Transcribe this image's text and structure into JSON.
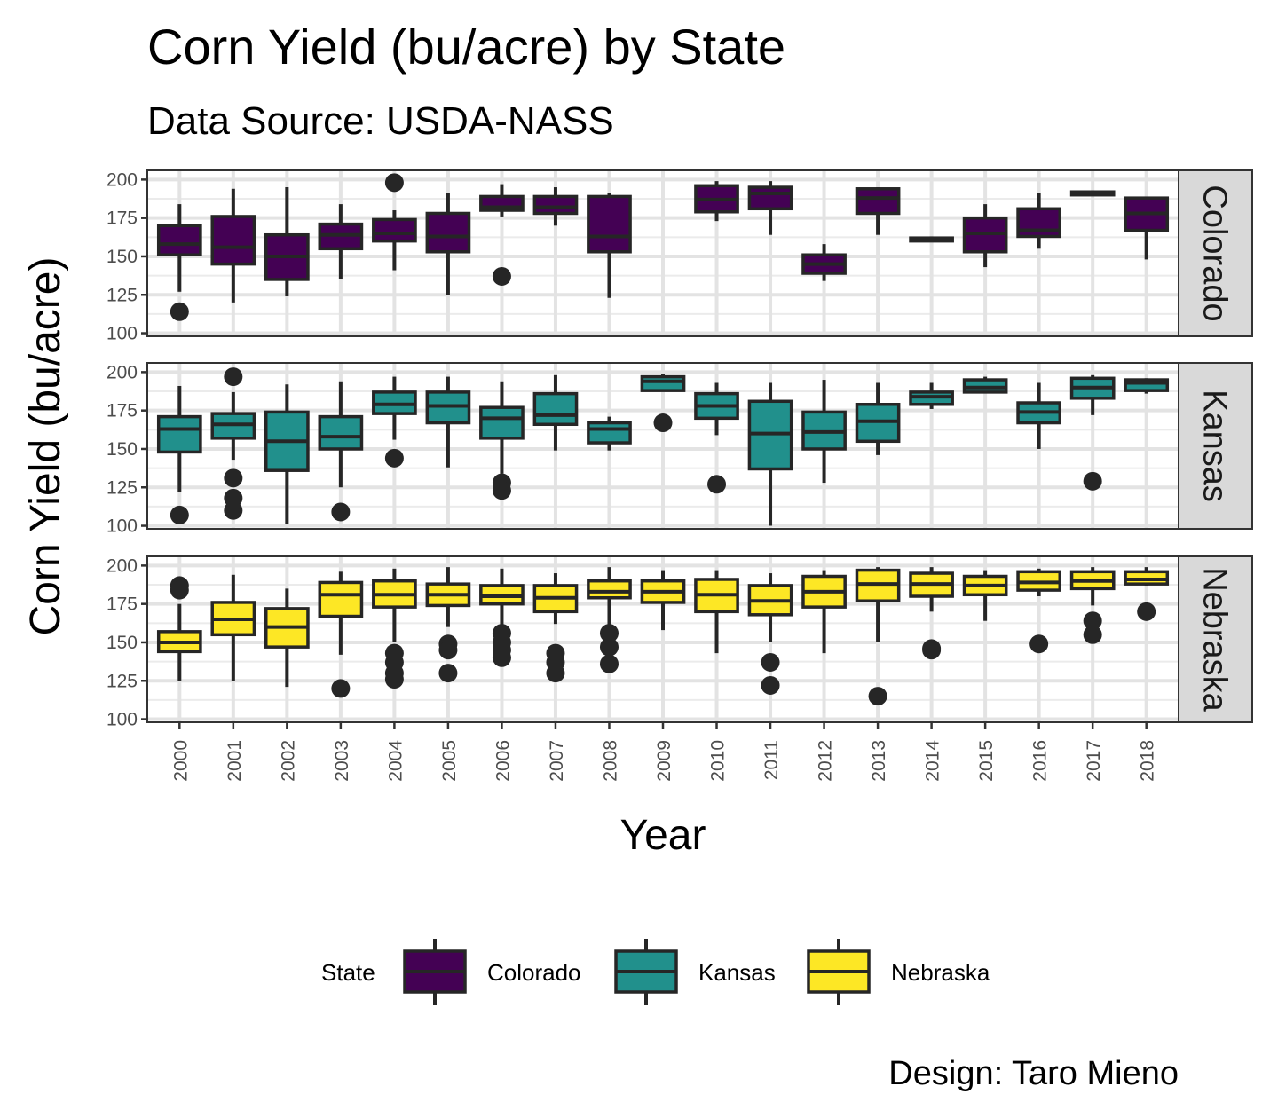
{
  "chart_data": {
    "type": "boxplot",
    "title": "Corn Yield (bu/acre) by State",
    "subtitle": "Data Source: USDA-NASS",
    "xlabel": "Year",
    "ylabel": "Corn Yield (bu/acre)",
    "caption": "Design: Taro Mieno",
    "ylim": [
      98,
      206
    ],
    "yticks": [
      100,
      125,
      150,
      175,
      200
    ],
    "categories": [
      "2000",
      "2001",
      "2002",
      "2003",
      "2004",
      "2005",
      "2006",
      "2007",
      "2008",
      "2009",
      "2010",
      "2011",
      "2012",
      "2013",
      "2014",
      "2015",
      "2016",
      "2017",
      "2018"
    ],
    "grid": true,
    "legend": {
      "title": "State",
      "position": "bottom"
    },
    "series": [
      {
        "name": "Colorado",
        "color": "#440154",
        "boxes": [
          {
            "x": "2000",
            "whislo": 127,
            "q1": 151,
            "med": 158,
            "q3": 170,
            "whishi": 184,
            "outliers": [
              114
            ]
          },
          {
            "x": "2001",
            "whislo": 120,
            "q1": 145,
            "med": 156,
            "q3": 176,
            "whishi": 194,
            "outliers": []
          },
          {
            "x": "2002",
            "whislo": 124,
            "q1": 135,
            "med": 150,
            "q3": 164,
            "whishi": 195,
            "outliers": []
          },
          {
            "x": "2003",
            "whislo": 135,
            "q1": 155,
            "med": 164,
            "q3": 171,
            "whishi": 184,
            "outliers": []
          },
          {
            "x": "2004",
            "whislo": 141,
            "q1": 160,
            "med": 165,
            "q3": 174,
            "whishi": 180,
            "outliers": [
              198
            ]
          },
          {
            "x": "2005",
            "whislo": 125,
            "q1": 153,
            "med": 163,
            "q3": 178,
            "whishi": 191,
            "outliers": []
          },
          {
            "x": "2006",
            "whislo": 176,
            "q1": 180,
            "med": 182,
            "q3": 189,
            "whishi": 197,
            "outliers": [
              137
            ]
          },
          {
            "x": "2007",
            "whislo": 170,
            "q1": 178,
            "med": 182,
            "q3": 189,
            "whishi": 195,
            "outliers": []
          },
          {
            "x": "2008",
            "whislo": 123,
            "q1": 153,
            "med": 163,
            "q3": 189,
            "whishi": 191,
            "outliers": []
          },
          {
            "x": "2009",
            "whislo": null,
            "q1": null,
            "med": null,
            "q3": null,
            "whishi": null,
            "outliers": []
          },
          {
            "x": "2010",
            "whislo": 173,
            "q1": 179,
            "med": 187,
            "q3": 196,
            "whishi": 199,
            "outliers": []
          },
          {
            "x": "2011",
            "whislo": 164,
            "q1": 181,
            "med": 191,
            "q3": 195,
            "whishi": 199,
            "outliers": []
          },
          {
            "x": "2012",
            "whislo": 134,
            "q1": 139,
            "med": 145,
            "q3": 151,
            "whishi": 158,
            "outliers": []
          },
          {
            "x": "2013",
            "whislo": 164,
            "q1": 178,
            "med": 188,
            "q3": 194,
            "whishi": 195,
            "outliers": []
          },
          {
            "x": "2014",
            "whislo": 160,
            "q1": 160,
            "med": 161,
            "q3": 162,
            "whishi": 163,
            "outliers": []
          },
          {
            "x": "2015",
            "whislo": 143,
            "q1": 153,
            "med": 165,
            "q3": 175,
            "whishi": 184,
            "outliers": []
          },
          {
            "x": "2016",
            "whislo": 155,
            "q1": 163,
            "med": 167,
            "q3": 181,
            "whishi": 191,
            "outliers": []
          },
          {
            "x": "2017",
            "whislo": 190,
            "q1": 190,
            "med": 191,
            "q3": 192,
            "whishi": 193,
            "outliers": []
          },
          {
            "x": "2018",
            "whislo": 148,
            "q1": 167,
            "med": 178,
            "q3": 188,
            "whishi": 188,
            "outliers": []
          }
        ]
      },
      {
        "name": "Kansas",
        "color": "#21908C",
        "boxes": [
          {
            "x": "2000",
            "whislo": 122,
            "q1": 148,
            "med": 163,
            "q3": 171,
            "whishi": 191,
            "outliers": [
              107
            ]
          },
          {
            "x": "2001",
            "whislo": 143,
            "q1": 157,
            "med": 166,
            "q3": 173,
            "whishi": 187,
            "outliers": [
              197,
              131,
              118,
              110
            ]
          },
          {
            "x": "2002",
            "whislo": 101,
            "q1": 136,
            "med": 155,
            "q3": 174,
            "whishi": 192,
            "outliers": []
          },
          {
            "x": "2003",
            "whislo": 125,
            "q1": 150,
            "med": 158,
            "q3": 171,
            "whishi": 194,
            "outliers": [
              109
            ]
          },
          {
            "x": "2004",
            "whislo": 156,
            "q1": 173,
            "med": 179,
            "q3": 187,
            "whishi": 197,
            "outliers": [
              144
            ]
          },
          {
            "x": "2005",
            "whislo": 138,
            "q1": 167,
            "med": 178,
            "q3": 187,
            "whishi": 197,
            "outliers": []
          },
          {
            "x": "2006",
            "whislo": 134,
            "q1": 157,
            "med": 170,
            "q3": 177,
            "whishi": 194,
            "outliers": [
              128,
              123
            ]
          },
          {
            "x": "2007",
            "whislo": 149,
            "q1": 166,
            "med": 172,
            "q3": 186,
            "whishi": 198,
            "outliers": []
          },
          {
            "x": "2008",
            "whislo": 149,
            "q1": 154,
            "med": 163,
            "q3": 167,
            "whishi": 171,
            "outliers": []
          },
          {
            "x": "2009",
            "whislo": 188,
            "q1": 188,
            "med": 194,
            "q3": 197,
            "whishi": 199,
            "outliers": [
              167
            ]
          },
          {
            "x": "2010",
            "whislo": 159,
            "q1": 170,
            "med": 178,
            "q3": 186,
            "whishi": 193,
            "outliers": [
              127
            ]
          },
          {
            "x": "2011",
            "whislo": 100,
            "q1": 137,
            "med": 160,
            "q3": 181,
            "whishi": 193,
            "outliers": []
          },
          {
            "x": "2012",
            "whislo": 128,
            "q1": 150,
            "med": 161,
            "q3": 174,
            "whishi": 195,
            "outliers": []
          },
          {
            "x": "2013",
            "whislo": 146,
            "q1": 155,
            "med": 168,
            "q3": 179,
            "whishi": 193,
            "outliers": []
          },
          {
            "x": "2014",
            "whislo": 176,
            "q1": 179,
            "med": 184,
            "q3": 187,
            "whishi": 193,
            "outliers": []
          },
          {
            "x": "2015",
            "whislo": 187,
            "q1": 187,
            "med": 190,
            "q3": 195,
            "whishi": 197,
            "outliers": []
          },
          {
            "x": "2016",
            "whislo": 150,
            "q1": 167,
            "med": 174,
            "q3": 180,
            "whishi": 193,
            "outliers": []
          },
          {
            "x": "2017",
            "whislo": 172,
            "q1": 183,
            "med": 190,
            "q3": 196,
            "whishi": 198,
            "outliers": [
              129
            ]
          },
          {
            "x": "2018",
            "whislo": 186,
            "q1": 188,
            "med": 193,
            "q3": 195,
            "whishi": 196,
            "outliers": []
          }
        ]
      },
      {
        "name": "Nebraska",
        "color": "#FDE725",
        "boxes": [
          {
            "x": "2000",
            "whislo": 125,
            "q1": 144,
            "med": 150,
            "q3": 157,
            "whishi": 175,
            "outliers": [
              187,
              184
            ]
          },
          {
            "x": "2001",
            "whislo": 125,
            "q1": 155,
            "med": 165,
            "q3": 176,
            "whishi": 194,
            "outliers": []
          },
          {
            "x": "2002",
            "whislo": 121,
            "q1": 147,
            "med": 160,
            "q3": 172,
            "whishi": 185,
            "outliers": []
          },
          {
            "x": "2003",
            "whislo": 142,
            "q1": 167,
            "med": 181,
            "q3": 189,
            "whishi": 196,
            "outliers": [
              120
            ]
          },
          {
            "x": "2004",
            "whislo": 150,
            "q1": 173,
            "med": 181,
            "q3": 190,
            "whishi": 198,
            "outliers": [
              143,
              137,
              130,
              126
            ]
          },
          {
            "x": "2005",
            "whislo": 160,
            "q1": 174,
            "med": 181,
            "q3": 188,
            "whishi": 199,
            "outliers": [
              149,
              145,
              130
            ]
          },
          {
            "x": "2006",
            "whislo": 160,
            "q1": 175,
            "med": 180,
            "q3": 187,
            "whishi": 198,
            "outliers": [
              156,
              150,
              145,
              140
            ]
          },
          {
            "x": "2007",
            "whislo": 162,
            "q1": 170,
            "med": 179,
            "q3": 187,
            "whishi": 195,
            "outliers": [
              143,
              137,
              130
            ]
          },
          {
            "x": "2008",
            "whislo": 160,
            "q1": 179,
            "med": 183,
            "q3": 190,
            "whishi": 199,
            "outliers": [
              156,
              147,
              136
            ]
          },
          {
            "x": "2009",
            "whislo": 158,
            "q1": 176,
            "med": 183,
            "q3": 190,
            "whishi": 197,
            "outliers": []
          },
          {
            "x": "2010",
            "whislo": 143,
            "q1": 170,
            "med": 181,
            "q3": 191,
            "whishi": 197,
            "outliers": []
          },
          {
            "x": "2011",
            "whislo": 150,
            "q1": 168,
            "med": 177,
            "q3": 187,
            "whishi": 195,
            "outliers": [
              137,
              122
            ]
          },
          {
            "x": "2012",
            "whislo": 143,
            "q1": 173,
            "med": 183,
            "q3": 193,
            "whishi": 197,
            "outliers": []
          },
          {
            "x": "2013",
            "whislo": 150,
            "q1": 177,
            "med": 188,
            "q3": 197,
            "whishi": 199,
            "outliers": [
              115
            ]
          },
          {
            "x": "2014",
            "whislo": 170,
            "q1": 180,
            "med": 188,
            "q3": 195,
            "whishi": 199,
            "outliers": [
              146,
              145
            ]
          },
          {
            "x": "2015",
            "whislo": 164,
            "q1": 181,
            "med": 187,
            "q3": 193,
            "whishi": 197,
            "outliers": []
          },
          {
            "x": "2016",
            "whislo": 180,
            "q1": 184,
            "med": 189,
            "q3": 196,
            "whishi": 198,
            "outliers": [
              149
            ]
          },
          {
            "x": "2017",
            "whislo": 174,
            "q1": 185,
            "med": 190,
            "q3": 196,
            "whishi": 199,
            "outliers": [
              164,
              155
            ]
          },
          {
            "x": "2018",
            "whislo": 187,
            "q1": 188,
            "med": 191,
            "q3": 196,
            "whishi": 199,
            "outliers": [
              170
            ]
          }
        ]
      }
    ]
  }
}
